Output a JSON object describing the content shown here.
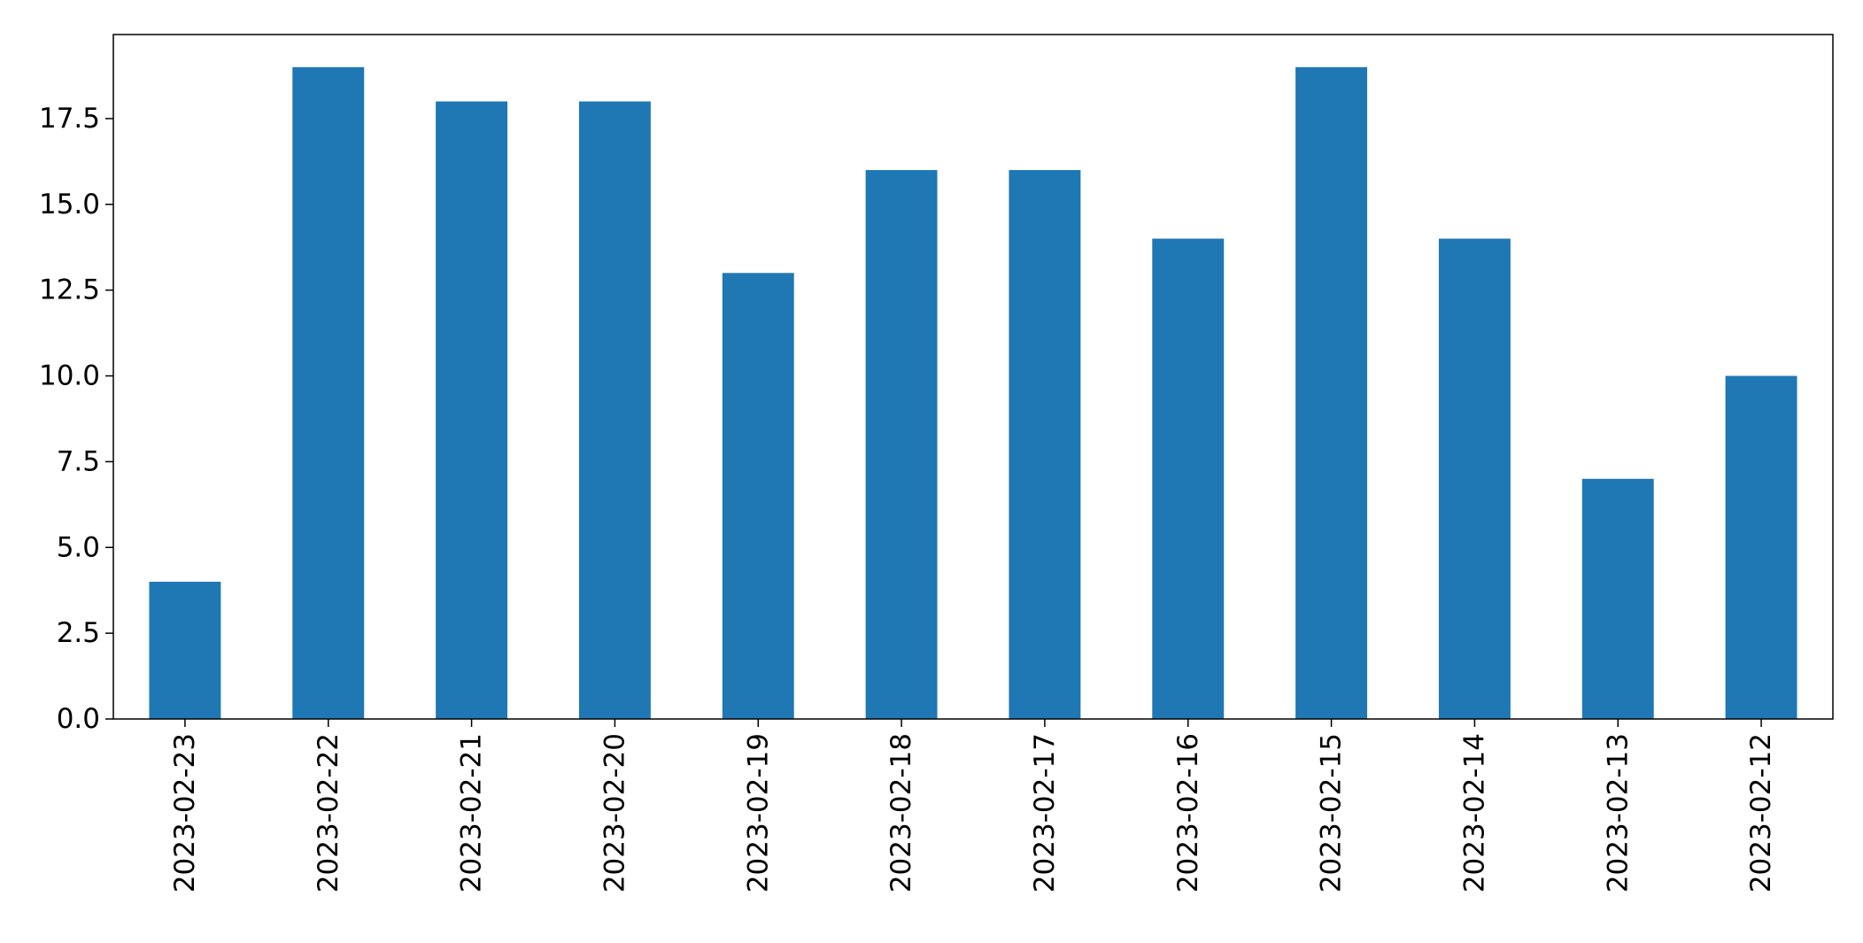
{
  "chart_data": {
    "type": "bar",
    "categories": [
      "2023-02-23",
      "2023-02-22",
      "2023-02-21",
      "2023-02-20",
      "2023-02-19",
      "2023-02-18",
      "2023-02-17",
      "2023-02-16",
      "2023-02-15",
      "2023-02-14",
      "2023-02-13",
      "2023-02-12"
    ],
    "values": [
      4,
      19,
      18,
      18,
      13,
      16,
      16,
      14,
      19,
      14,
      7,
      10
    ],
    "title": "",
    "xlabel": "",
    "ylabel": "",
    "ylim": [
      0,
      19.95
    ],
    "yticks": [
      "0.0",
      "2.5",
      "5.0",
      "7.5",
      "10.0",
      "12.5",
      "15.0",
      "17.5"
    ],
    "grid": false,
    "legend": "none",
    "bar_color": "#1f77b4"
  }
}
